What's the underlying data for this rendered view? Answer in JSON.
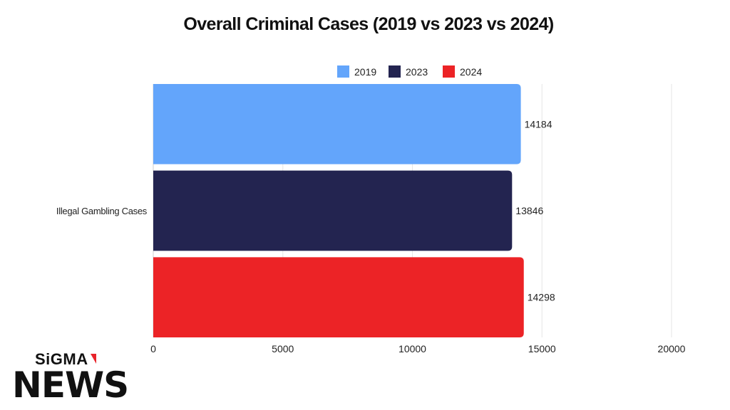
{
  "chart_data": {
    "type": "bar",
    "orientation": "horizontal",
    "title": "Overall Criminal Cases (2019 vs 2023 vs 2024)",
    "categories": [
      "Illegal Gambling Cases"
    ],
    "series": [
      {
        "name": "2019",
        "values": [
          14184
        ],
        "color": "#63a5fb"
      },
      {
        "name": "2023",
        "values": [
          13846
        ],
        "color": "#232450"
      },
      {
        "name": "2024",
        "values": [
          14298
        ],
        "color": "#ec2326"
      }
    ],
    "xlim": [
      0,
      20000
    ],
    "xticks": [
      0,
      5000,
      10000,
      15000,
      20000
    ],
    "xlabel": "",
    "ylabel": "",
    "grid": true,
    "legend_position": "top"
  },
  "brand": {
    "top": "SiGMA",
    "bottom": "NEWS",
    "accent": "#e8232a"
  }
}
